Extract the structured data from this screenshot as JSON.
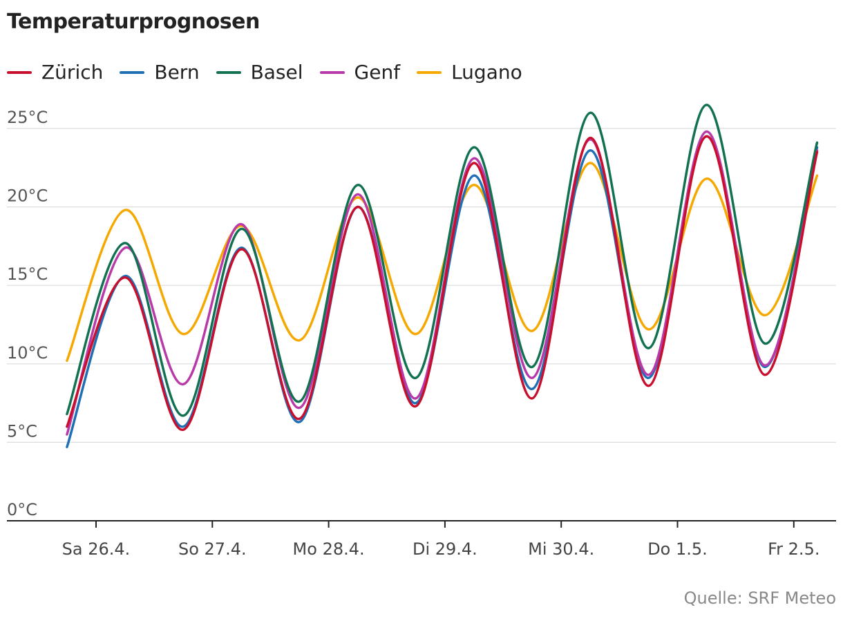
{
  "chart_data": {
    "type": "line",
    "title": "Temperaturprognosen",
    "source": "Quelle: SRF Meteo",
    "ylim": [
      0,
      25
    ],
    "yticks": [
      0,
      5,
      10,
      15,
      20,
      25
    ],
    "ytick_labels": [
      "0°C",
      "5°C",
      "10°C",
      "15°C",
      "20°C",
      "25°C"
    ],
    "x_tick_labels": [
      "Sa 26.4.",
      "So 27.4.",
      "Mo 28.4.",
      "Di 29.4.",
      "Mi 30.4.",
      "Do 1.5.",
      "Fr 2.5."
    ],
    "grid": true,
    "legend_position": "top-left",
    "series": [
      {
        "name": "Zürich",
        "color": "#c8102e",
        "points": [
          [
            -0.25,
            6.0
          ],
          [
            0.25,
            15.5
          ],
          [
            0.75,
            5.8
          ],
          [
            1.25,
            17.3
          ],
          [
            1.75,
            6.5
          ],
          [
            2.25,
            20.0
          ],
          [
            2.75,
            7.3
          ],
          [
            3.25,
            22.8
          ],
          [
            3.75,
            7.8
          ],
          [
            4.25,
            24.4
          ],
          [
            4.75,
            8.6
          ],
          [
            5.25,
            24.5
          ],
          [
            5.75,
            9.3
          ],
          [
            6.2,
            23.5
          ]
        ]
      },
      {
        "name": "Bern",
        "color": "#1f6fb5",
        "points": [
          [
            -0.25,
            4.7
          ],
          [
            0.25,
            15.6
          ],
          [
            0.75,
            6.0
          ],
          [
            1.25,
            17.4
          ],
          [
            1.75,
            6.3
          ],
          [
            2.25,
            20.0
          ],
          [
            2.75,
            7.5
          ],
          [
            3.25,
            22.0
          ],
          [
            3.75,
            8.4
          ],
          [
            4.25,
            23.6
          ],
          [
            4.75,
            9.1
          ],
          [
            5.25,
            24.5
          ],
          [
            5.75,
            9.8
          ],
          [
            6.2,
            23.8
          ]
        ]
      },
      {
        "name": "Basel",
        "color": "#127151",
        "points": [
          [
            -0.25,
            6.8
          ],
          [
            0.25,
            17.7
          ],
          [
            0.75,
            6.7
          ],
          [
            1.25,
            18.6
          ],
          [
            1.75,
            7.6
          ],
          [
            2.25,
            21.4
          ],
          [
            2.75,
            9.1
          ],
          [
            3.25,
            23.8
          ],
          [
            3.75,
            9.8
          ],
          [
            4.25,
            26.0
          ],
          [
            4.75,
            11.0
          ],
          [
            5.25,
            26.5
          ],
          [
            5.75,
            11.3
          ],
          [
            6.2,
            24.1
          ]
        ]
      },
      {
        "name": "Genf",
        "color": "#b83aa8",
        "points": [
          [
            -0.25,
            5.5
          ],
          [
            0.25,
            17.4
          ],
          [
            0.75,
            8.7
          ],
          [
            1.25,
            18.9
          ],
          [
            1.75,
            7.2
          ],
          [
            2.25,
            20.8
          ],
          [
            2.75,
            7.8
          ],
          [
            3.25,
            23.1
          ],
          [
            3.75,
            9.1
          ],
          [
            4.25,
            24.3
          ],
          [
            4.75,
            9.3
          ],
          [
            5.25,
            24.8
          ],
          [
            5.75,
            9.9
          ],
          [
            6.2,
            23.6
          ]
        ]
      },
      {
        "name": "Lugano",
        "color": "#f5a800",
        "points": [
          [
            -0.25,
            10.2
          ],
          [
            0.25,
            19.8
          ],
          [
            0.75,
            11.9
          ],
          [
            1.25,
            18.8
          ],
          [
            1.75,
            11.5
          ],
          [
            2.25,
            20.6
          ],
          [
            2.75,
            11.9
          ],
          [
            3.25,
            21.4
          ],
          [
            3.75,
            12.1
          ],
          [
            4.25,
            22.8
          ],
          [
            4.75,
            12.2
          ],
          [
            5.25,
            21.8
          ],
          [
            5.75,
            13.1
          ],
          [
            6.2,
            22.0
          ]
        ]
      }
    ]
  }
}
